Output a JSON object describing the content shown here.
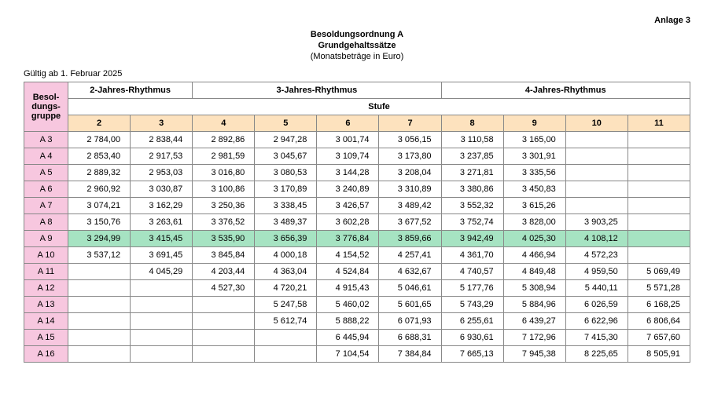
{
  "anlage": "Anlage 3",
  "titles": {
    "line1": "Besoldungsordnung A",
    "line2": "Grundgehaltssätze",
    "line3": "(Monatsbeträge in Euro)"
  },
  "valid_from": "Gültig ab 1. Februar 2025",
  "headers": {
    "grade_label_l1": "Besol-",
    "grade_label_l2": "dungs-",
    "grade_label_l3": "gruppe",
    "rhythm2": "2-Jahres-Rhythmus",
    "rhythm3": "3-Jahres-Rhythmus",
    "rhythm4": "4-Jahres-Rhythmus",
    "stufe": "Stufe",
    "cols": [
      "2",
      "3",
      "4",
      "5",
      "6",
      "7",
      "8",
      "9",
      "10",
      "11"
    ]
  },
  "colors": {
    "grade_header_bg": "#f7c7df",
    "stufe_num_bg": "#fde2be",
    "highlight_bg": "#a6e3c2",
    "border": "#888888",
    "background": "#ffffff",
    "text": "#000000"
  },
  "highlight_row_index": 6,
  "rows": [
    {
      "grade": "A  3",
      "v": [
        "2 784,00",
        "2 838,44",
        "2 892,86",
        "2 947,28",
        "3 001,74",
        "3 056,15",
        "3 110,58",
        "3 165,00",
        "",
        ""
      ]
    },
    {
      "grade": "A  4",
      "v": [
        "2 853,40",
        "2 917,53",
        "2 981,59",
        "3 045,67",
        "3 109,74",
        "3 173,80",
        "3 237,85",
        "3 301,91",
        "",
        ""
      ]
    },
    {
      "grade": "A  5",
      "v": [
        "2 889,32",
        "2 953,03",
        "3 016,80",
        "3 080,53",
        "3 144,28",
        "3 208,04",
        "3 271,81",
        "3 335,56",
        "",
        ""
      ]
    },
    {
      "grade": "A  6",
      "v": [
        "2 960,92",
        "3 030,87",
        "3 100,86",
        "3 170,89",
        "3 240,89",
        "3 310,89",
        "3 380,86",
        "3 450,83",
        "",
        ""
      ]
    },
    {
      "grade": "A  7",
      "v": [
        "3 074,21",
        "3 162,29",
        "3 250,36",
        "3 338,45",
        "3 426,57",
        "3 489,42",
        "3 552,32",
        "3 615,26",
        "",
        ""
      ]
    },
    {
      "grade": "A  8",
      "v": [
        "3 150,76",
        "3 263,61",
        "3 376,52",
        "3 489,37",
        "3 602,28",
        "3 677,52",
        "3 752,74",
        "3 828,00",
        "3 903,25",
        ""
      ]
    },
    {
      "grade": "A  9",
      "v": [
        "3 294,99",
        "3 415,45",
        "3 535,90",
        "3 656,39",
        "3 776,84",
        "3 859,66",
        "3 942,49",
        "4 025,30",
        "4 108,12",
        ""
      ]
    },
    {
      "grade": "A 10",
      "v": [
        "3 537,12",
        "3 691,45",
        "3 845,84",
        "4 000,18",
        "4 154,52",
        "4 257,41",
        "4 361,70",
        "4 466,94",
        "4 572,23",
        ""
      ]
    },
    {
      "grade": "A 11",
      "v": [
        "",
        "4 045,29",
        "4 203,44",
        "4 363,04",
        "4 524,84",
        "4 632,67",
        "4 740,57",
        "4 849,48",
        "4 959,50",
        "5 069,49"
      ]
    },
    {
      "grade": "A 12",
      "v": [
        "",
        "",
        "4 527,30",
        "4 720,21",
        "4 915,43",
        "5 046,61",
        "5 177,76",
        "5 308,94",
        "5 440,11",
        "5 571,28"
      ]
    },
    {
      "grade": "A 13",
      "v": [
        "",
        "",
        "",
        "5 247,58",
        "5 460,02",
        "5 601,65",
        "5 743,29",
        "5 884,96",
        "6 026,59",
        "6 168,25"
      ]
    },
    {
      "grade": "A 14",
      "v": [
        "",
        "",
        "",
        "5 612,74",
        "5 888,22",
        "6 071,93",
        "6 255,61",
        "6 439,27",
        "6 622,96",
        "6 806,64"
      ]
    },
    {
      "grade": "A 15",
      "v": [
        "",
        "",
        "",
        "",
        "6 445,94",
        "6 688,31",
        "6 930,61",
        "7 172,96",
        "7 415,30",
        "7 657,60"
      ]
    },
    {
      "grade": "A 16",
      "v": [
        "",
        "",
        "",
        "",
        "7 104,54",
        "7 384,84",
        "7 665,13",
        "7 945,38",
        "8 225,65",
        "8 505,91"
      ]
    }
  ]
}
